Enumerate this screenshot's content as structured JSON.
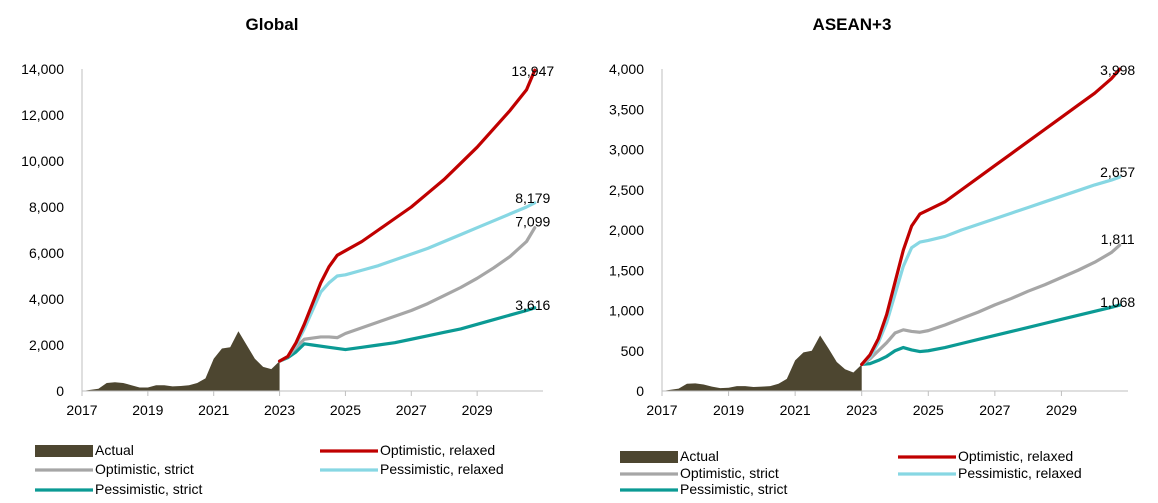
{
  "chart_data": [
    {
      "type": "line",
      "title": "Global",
      "xlabel": "",
      "ylabel": "",
      "ylim": [
        0,
        14000
      ],
      "yticks": [
        0,
        2000,
        4000,
        6000,
        8000,
        10000,
        12000,
        14000
      ],
      "ytick_labels": [
        "0",
        "2,000",
        "4,000",
        "6,000",
        "8,000",
        "10,000",
        "12,000",
        "14,000"
      ],
      "xlim": [
        2017,
        2031
      ],
      "xticks": [
        2017,
        2019,
        2021,
        2023,
        2025,
        2027,
        2029
      ],
      "xtick_labels": [
        "2017",
        "2019",
        "2021",
        "2023",
        "2025",
        "2027",
        "2029"
      ],
      "actual": {
        "name": "Actual",
        "color": "#4d4630",
        "x": [
          2017.0,
          2017.5,
          2017.75,
          2018.0,
          2018.25,
          2018.5,
          2018.75,
          2019.0,
          2019.25,
          2019.5,
          2019.75,
          2020.0,
          2020.25,
          2020.5,
          2020.75,
          2021.0,
          2021.25,
          2021.5,
          2021.75,
          2022.0,
          2022.25,
          2022.5,
          2022.75,
          2023.0
        ],
        "y": [
          0,
          100,
          350,
          380,
          350,
          250,
          150,
          150,
          250,
          250,
          200,
          220,
          250,
          350,
          550,
          1400,
          1850,
          1900,
          2600,
          2000,
          1400,
          1050,
          950,
          1300
        ]
      },
      "series": [
        {
          "name": "Optimistic, relaxed",
          "color": "#c00000",
          "end_label": "13,947",
          "x": [
            2023.0,
            2023.25,
            2023.5,
            2023.75,
            2024.0,
            2024.25,
            2024.5,
            2024.75,
            2025.0,
            2025.5,
            2026.0,
            2026.5,
            2027.0,
            2027.5,
            2028.0,
            2028.5,
            2029.0,
            2029.5,
            2030.0,
            2030.5,
            2030.75
          ],
          "y": [
            1300,
            1500,
            2100,
            2900,
            3800,
            4700,
            5400,
            5900,
            6100,
            6500,
            7000,
            7500,
            8000,
            8600,
            9200,
            9900,
            10600,
            11400,
            12200,
            13100,
            13947
          ]
        },
        {
          "name": "Optimistic, strict",
          "color": "#a6a6a6",
          "end_label": "7,099",
          "x": [
            2023.0,
            2023.25,
            2023.5,
            2023.75,
            2024.0,
            2024.25,
            2024.5,
            2024.75,
            2025.0,
            2025.5,
            2026.0,
            2026.5,
            2027.0,
            2027.5,
            2028.0,
            2028.5,
            2029.0,
            2029.5,
            2030.0,
            2030.5,
            2030.75
          ],
          "y": [
            1300,
            1500,
            1900,
            2250,
            2300,
            2350,
            2350,
            2320,
            2500,
            2750,
            3000,
            3250,
            3500,
            3800,
            4150,
            4500,
            4900,
            5350,
            5850,
            6500,
            7099
          ]
        },
        {
          "name": "Pessimistic, relaxed",
          "color": "#87d7e3",
          "end_label": "8,179",
          "x": [
            2023.0,
            2023.25,
            2023.5,
            2023.75,
            2024.0,
            2024.25,
            2024.5,
            2024.75,
            2025.0,
            2025.5,
            2026.0,
            2026.5,
            2027.0,
            2027.5,
            2028.0,
            2028.5,
            2029.0,
            2029.5,
            2030.0,
            2030.5,
            2030.75
          ],
          "y": [
            1300,
            1500,
            2000,
            2700,
            3500,
            4300,
            4700,
            5000,
            5050,
            5250,
            5450,
            5700,
            5950,
            6200,
            6500,
            6800,
            7100,
            7400,
            7700,
            8000,
            8179
          ]
        },
        {
          "name": "Pessimistic, strict",
          "color": "#0b9a94",
          "end_label": "3,616",
          "x": [
            2023.0,
            2023.25,
            2023.5,
            2023.75,
            2024.0,
            2024.5,
            2025.0,
            2025.5,
            2026.0,
            2026.5,
            2027.0,
            2027.5,
            2028.0,
            2028.5,
            2029.0,
            2029.5,
            2030.0,
            2030.5,
            2030.75
          ],
          "y": [
            1300,
            1450,
            1700,
            2050,
            2000,
            1900,
            1800,
            1900,
            2000,
            2100,
            2250,
            2400,
            2550,
            2700,
            2900,
            3100,
            3300,
            3500,
            3616
          ]
        }
      ]
    },
    {
      "type": "line",
      "title": "ASEAN+3",
      "xlabel": "",
      "ylabel": "",
      "ylim": [
        0,
        4000
      ],
      "yticks": [
        0,
        500,
        1000,
        1500,
        2000,
        2500,
        3000,
        3500,
        4000
      ],
      "ytick_labels": [
        "0",
        "500",
        "1,000",
        "1,500",
        "2,000",
        "2,500",
        "3,000",
        "3,500",
        "4,000"
      ],
      "xlim": [
        2017,
        2031
      ],
      "xticks": [
        2017,
        2019,
        2021,
        2023,
        2025,
        2027,
        2029
      ],
      "xtick_labels": [
        "2017",
        "2019",
        "2021",
        "2023",
        "2025",
        "2027",
        "2029"
      ],
      "actual": {
        "name": "Actual",
        "color": "#4d4630",
        "x": [
          2017.0,
          2017.5,
          2017.75,
          2018.0,
          2018.25,
          2018.5,
          2018.75,
          2019.0,
          2019.25,
          2019.5,
          2019.75,
          2020.0,
          2020.25,
          2020.5,
          2020.75,
          2021.0,
          2021.25,
          2021.5,
          2021.75,
          2022.0,
          2022.25,
          2022.5,
          2022.75,
          2023.0
        ],
        "y": [
          0,
          30,
          90,
          95,
          80,
          55,
          35,
          40,
          60,
          60,
          50,
          55,
          60,
          90,
          150,
          380,
          480,
          500,
          690,
          530,
          360,
          270,
          230,
          330
        ]
      },
      "series": [
        {
          "name": "Optimistic, relaxed",
          "color": "#c00000",
          "end_label": "3,998",
          "x": [
            2023.0,
            2023.25,
            2023.5,
            2023.75,
            2024.0,
            2024.25,
            2024.5,
            2024.75,
            2025.0,
            2025.5,
            2026.0,
            2026.5,
            2027.0,
            2027.5,
            2028.0,
            2028.5,
            2029.0,
            2029.5,
            2030.0,
            2030.5,
            2030.75
          ],
          "y": [
            330,
            450,
            650,
            950,
            1350,
            1750,
            2050,
            2200,
            2250,
            2350,
            2500,
            2650,
            2800,
            2950,
            3100,
            3250,
            3400,
            3550,
            3700,
            3880,
            3998
          ]
        },
        {
          "name": "Optimistic, strict",
          "color": "#a6a6a6",
          "end_label": "1,811",
          "x": [
            2023.0,
            2023.25,
            2023.5,
            2023.75,
            2024.0,
            2024.25,
            2024.5,
            2024.75,
            2025.0,
            2025.5,
            2026.0,
            2026.5,
            2027.0,
            2027.5,
            2028.0,
            2028.5,
            2029.0,
            2029.5,
            2030.0,
            2030.5,
            2030.75
          ],
          "y": [
            330,
            400,
            500,
            600,
            720,
            760,
            740,
            730,
            750,
            820,
            900,
            980,
            1070,
            1150,
            1240,
            1320,
            1410,
            1500,
            1600,
            1720,
            1811
          ]
        },
        {
          "name": "Pessimistic, relaxed",
          "color": "#87d7e3",
          "end_label": "2,657",
          "x": [
            2023.0,
            2023.25,
            2023.5,
            2023.75,
            2024.0,
            2024.25,
            2024.5,
            2024.75,
            2025.0,
            2025.5,
            2026.0,
            2026.5,
            2027.0,
            2027.5,
            2028.0,
            2028.5,
            2029.0,
            2029.5,
            2030.0,
            2030.5,
            2030.75
          ],
          "y": [
            330,
            420,
            600,
            850,
            1200,
            1550,
            1780,
            1850,
            1870,
            1920,
            2000,
            2070,
            2140,
            2210,
            2280,
            2350,
            2420,
            2490,
            2560,
            2620,
            2657
          ]
        },
        {
          "name": "Pessimistic, strict",
          "color": "#0b9a94",
          "end_label": "1,068",
          "x": [
            2023.0,
            2023.25,
            2023.5,
            2023.75,
            2024.0,
            2024.25,
            2024.5,
            2024.75,
            2025.0,
            2025.5,
            2026.0,
            2026.5,
            2027.0,
            2027.5,
            2028.0,
            2028.5,
            2029.0,
            2029.5,
            2030.0,
            2030.5,
            2030.75
          ],
          "y": [
            330,
            340,
            380,
            430,
            500,
            540,
            510,
            490,
            500,
            540,
            590,
            640,
            690,
            740,
            790,
            840,
            890,
            940,
            990,
            1040,
            1068
          ]
        }
      ]
    }
  ],
  "legend": {
    "actual": "Actual",
    "optimistic_relaxed": "Optimistic, relaxed",
    "optimistic_strict": "Optimistic, strict",
    "pessimistic_relaxed": "Pessimistic, relaxed",
    "pessimistic_strict": "Pessimistic, strict"
  }
}
